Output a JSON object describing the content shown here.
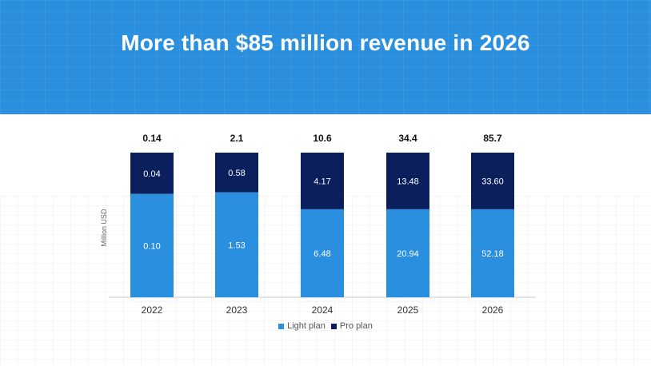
{
  "title": "More than $85 million revenue in 2026",
  "chart_data": {
    "type": "bar",
    "stacked": true,
    "categories": [
      "2022",
      "2023",
      "2024",
      "2025",
      "2026"
    ],
    "series": [
      {
        "name": "Light plan",
        "color": "#2b8fe0",
        "values": [
          0.1,
          1.53,
          6.48,
          20.94,
          52.18
        ],
        "labels": [
          "0.10",
          "1.53",
          "6.48",
          "20.94",
          "52.18"
        ]
      },
      {
        "name": "Pro plan",
        "color": "#0b1f5c",
        "values": [
          0.04,
          0.58,
          4.17,
          13.48,
          33.6
        ],
        "labels": [
          "0.04",
          "0.58",
          "4.17",
          "13.48",
          "33.60"
        ]
      }
    ],
    "totals": [
      "0.14",
      "2.1",
      "10.6",
      "34.4",
      "85.7"
    ],
    "ylabel": "Million USD",
    "xlabel": "",
    "legend_position": "bottom"
  }
}
